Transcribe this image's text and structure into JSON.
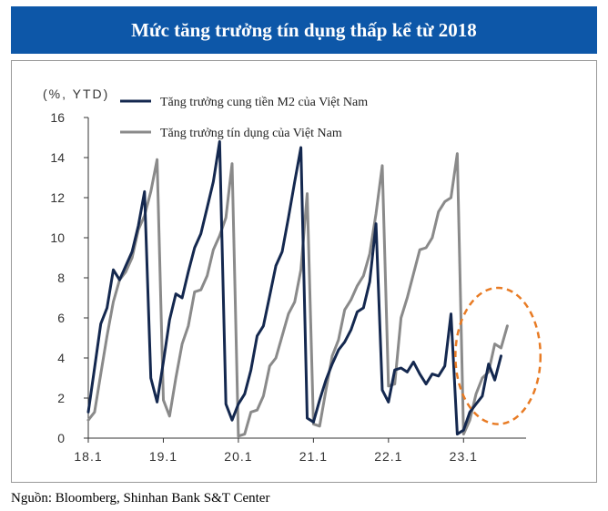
{
  "header": {
    "title": "Mức tăng trưởng tín dụng thấp kể từ 2018"
  },
  "footer": {
    "source": "Nguồn: Bloomberg, Shinhan Bank S&T Center"
  },
  "colors": {
    "m2": "#14284f",
    "credit": "#8a8a8a",
    "highlight": "#e87b24",
    "title_bg": "#0d57a8"
  },
  "chart_data": {
    "type": "line",
    "ylabel": "(%, YTD)",
    "ylim": [
      0,
      16
    ],
    "yticks": [
      0,
      2,
      4,
      6,
      8,
      10,
      12,
      14,
      16
    ],
    "xticks": [
      {
        "label": "18.1",
        "x": 0
      },
      {
        "label": "19.1",
        "x": 12
      },
      {
        "label": "20.1",
        "x": 24
      },
      {
        "label": "21.1",
        "x": 36
      },
      {
        "label": "22.1",
        "x": 48
      },
      {
        "label": "23.1",
        "x": 60
      }
    ],
    "xlim": [
      0,
      70
    ],
    "legend": "top-left",
    "grid": false,
    "series": [
      {
        "name": "Tăng trưởng cung tiền M2 của Việt Nam",
        "color": "#14284f",
        "values": [
          1.3,
          3.5,
          5.7,
          6.5,
          8.4,
          7.9,
          8.6,
          9.3,
          10.6,
          12.3,
          3.0,
          1.8,
          3.8,
          5.9,
          7.2,
          7.0,
          8.3,
          9.5,
          10.2,
          11.5,
          12.8,
          14.8,
          1.7,
          0.9,
          1.7,
          2.2,
          3.4,
          5.1,
          5.6,
          7.1,
          8.6,
          9.3,
          11.0,
          12.8,
          14.5,
          1.0,
          0.8,
          1.9,
          2.9,
          3.7,
          4.4,
          4.8,
          5.4,
          6.3,
          6.5,
          7.8,
          10.7,
          2.4,
          1.8,
          3.4,
          3.5,
          3.3,
          3.8,
          3.2,
          2.7,
          3.2,
          3.1,
          3.6,
          6.2,
          0.2,
          0.4,
          1.3,
          1.7,
          2.1,
          3.7,
          2.9,
          4.1
        ]
      },
      {
        "name": "Tăng trưởng tín dụng của Việt Nam",
        "color": "#8a8a8a",
        "values": [
          0.9,
          1.3,
          3.2,
          5.1,
          6.8,
          7.9,
          8.3,
          9.0,
          10.4,
          11.1,
          12.3,
          13.9,
          1.9,
          1.1,
          3.0,
          4.7,
          5.6,
          7.3,
          7.4,
          8.1,
          9.4,
          10.1,
          11.0,
          13.7,
          0.1,
          0.2,
          1.3,
          1.4,
          2.1,
          3.6,
          4.0,
          5.1,
          6.2,
          6.8,
          8.4,
          12.2,
          0.7,
          0.6,
          2.4,
          4.1,
          4.9,
          6.4,
          6.9,
          7.6,
          8.1,
          9.2,
          11.2,
          13.6,
          2.6,
          2.7,
          6.0,
          7.0,
          8.2,
          9.4,
          9.5,
          10.0,
          11.3,
          11.8,
          12.0,
          14.2,
          0.2,
          0.9,
          2.2,
          3.0,
          3.3,
          4.7,
          4.5,
          5.6
        ]
      }
    ],
    "annotations": [
      {
        "type": "dashed-circle",
        "color": "#e87b24",
        "cx": 65.5,
        "cy": 4.1,
        "rx": 6.8,
        "ry": 3.4
      }
    ]
  }
}
